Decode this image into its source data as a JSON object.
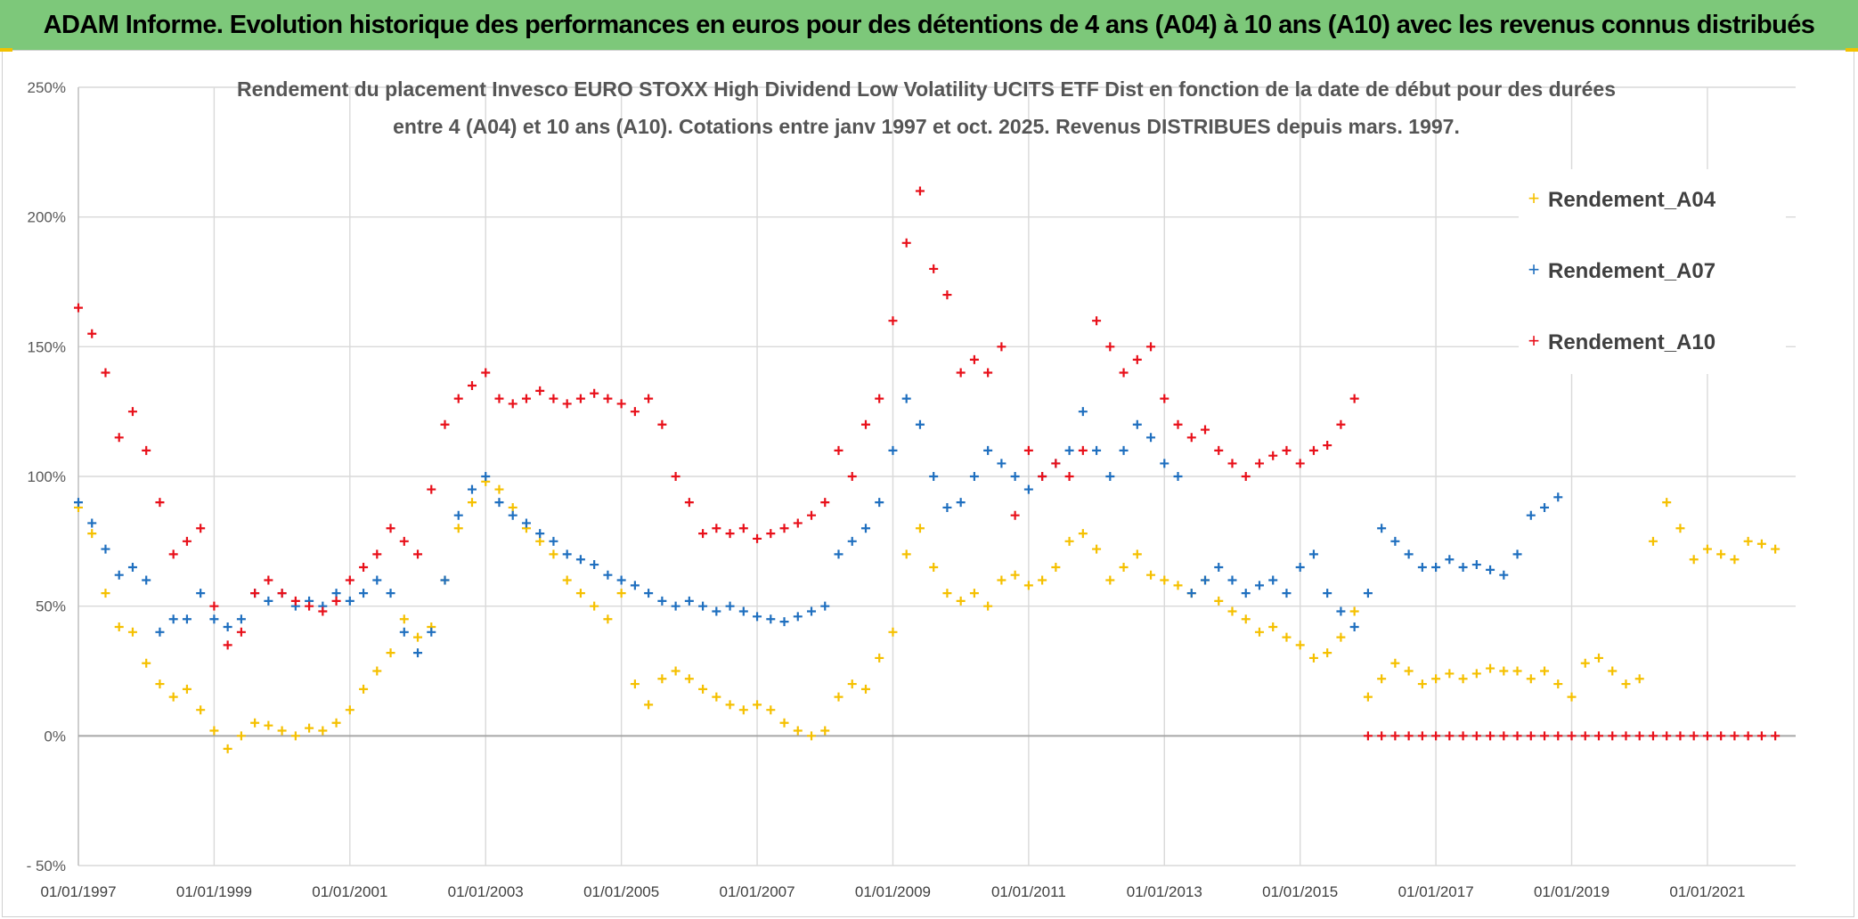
{
  "banner": {
    "title": "ADAM Informe. Evolution historique des performances en euros pour des détentions de 4 ans (A04) à 10 ans (A10) avec les revenus connus distribués"
  },
  "colors": {
    "banner_bg": "#7dc87a",
    "A04": "#f5c000",
    "A07": "#1f6fbf",
    "A10": "#e8101a",
    "grid": "#d9d9d9"
  },
  "chart_data": {
    "type": "scatter",
    "title_lines": [
      "Rendement du placement Invesco EURO STOXX High Dividend Low Volatility UCITS ETF Dist en fonction de la date de début pour des durées",
      "entre 4 (A04) et 10 ans (A10). Cotations entre janv 1997 et oct. 2025. Revenus DISTRIBUES depuis mars. 1997."
    ],
    "xlabel": "",
    "ylabel": "",
    "xlim": [
      1997.0,
      2022.3
    ],
    "ylim": [
      -50,
      250
    ],
    "y_ticks": [
      -50,
      0,
      50,
      100,
      150,
      200,
      250
    ],
    "y_tick_labels": [
      "- 50%",
      "0%",
      "50%",
      "100%",
      "150%",
      "200%",
      "250%"
    ],
    "x_ticks": [
      1997,
      1999,
      2001,
      2003,
      2005,
      2007,
      2009,
      2011,
      2013,
      2015,
      2017,
      2019,
      2021
    ],
    "x_tick_labels": [
      "01/01/1997",
      "01/01/1999",
      "01/01/2001",
      "01/01/2003",
      "01/01/2005",
      "01/01/2007",
      "01/01/2009",
      "01/01/2011",
      "01/01/2013",
      "01/01/2015",
      "01/01/2017",
      "01/01/2019",
      "01/01/2021"
    ],
    "legend_position": "top-right",
    "marker": "+",
    "series": [
      {
        "name": "Rendement_A04",
        "color": "#f5c000",
        "x": [
          1997.0,
          1997.2,
          1997.4,
          1997.6,
          1997.8,
          1998.0,
          1998.2,
          1998.4,
          1998.6,
          1998.8,
          1999.0,
          1999.2,
          1999.4,
          1999.6,
          1999.8,
          2000.0,
          2000.2,
          2000.4,
          2000.6,
          2000.8,
          2001.0,
          2001.2,
          2001.4,
          2001.6,
          2001.8,
          2002.0,
          2002.2,
          2002.4,
          2002.6,
          2002.8,
          2003.0,
          2003.2,
          2003.4,
          2003.6,
          2003.8,
          2004.0,
          2004.2,
          2004.4,
          2004.6,
          2004.8,
          2005.0,
          2005.2,
          2005.4,
          2005.6,
          2005.8,
          2006.0,
          2006.2,
          2006.4,
          2006.6,
          2006.8,
          2007.0,
          2007.2,
          2007.4,
          2007.6,
          2007.8,
          2008.0,
          2008.2,
          2008.4,
          2008.6,
          2008.8,
          2009.0,
          2009.2,
          2009.4,
          2009.6,
          2009.8,
          2010.0,
          2010.2,
          2010.4,
          2010.6,
          2010.8,
          2011.0,
          2011.2,
          2011.4,
          2011.6,
          2011.8,
          2012.0,
          2012.2,
          2012.4,
          2012.6,
          2012.8,
          2013.0,
          2013.2,
          2013.4,
          2013.6,
          2013.8,
          2014.0,
          2014.2,
          2014.4,
          2014.6,
          2014.8,
          2015.0,
          2015.2,
          2015.4,
          2015.6,
          2015.8,
          2016.0,
          2016.2,
          2016.4,
          2016.6,
          2016.8,
          2017.0,
          2017.2,
          2017.4,
          2017.6,
          2017.8,
          2018.0,
          2018.2,
          2018.4,
          2018.6,
          2018.8,
          2019.0,
          2019.2,
          2019.4,
          2019.6,
          2019.8,
          2020.0,
          2020.2,
          2020.4,
          2020.6,
          2020.8,
          2021.0,
          2021.2,
          2021.4,
          2021.6,
          2021.8,
          2022.0
        ],
        "values": [
          88,
          78,
          55,
          42,
          40,
          28,
          20,
          15,
          18,
          10,
          2,
          -5,
          0,
          5,
          4,
          2,
          0,
          3,
          2,
          5,
          10,
          18,
          25,
          32,
          45,
          38,
          42,
          60,
          80,
          90,
          98,
          95,
          88,
          80,
          75,
          70,
          60,
          55,
          50,
          45,
          55,
          20,
          12,
          22,
          25,
          22,
          18,
          15,
          12,
          10,
          12,
          10,
          5,
          2,
          0,
          2,
          15,
          20,
          18,
          30,
          40,
          70,
          80,
          65,
          55,
          52,
          55,
          50,
          60,
          62,
          58,
          60,
          65,
          75,
          78,
          72,
          60,
          65,
          70,
          62,
          60,
          58,
          55,
          60,
          52,
          48,
          45,
          40,
          42,
          38,
          35,
          30,
          32,
          38,
          48,
          15,
          22,
          28,
          25,
          20,
          22,
          24,
          22,
          24,
          26,
          25,
          25,
          22,
          25,
          20,
          15,
          28,
          30,
          25,
          20,
          22,
          75,
          90,
          80,
          68,
          72,
          70,
          68,
          75,
          74,
          72
        ]
      },
      {
        "name": "Rendement_A07",
        "color": "#1f6fbf",
        "x": [
          1997.0,
          1997.2,
          1997.4,
          1997.6,
          1997.8,
          1998.0,
          1998.2,
          1998.4,
          1998.6,
          1998.8,
          1999.0,
          1999.2,
          1999.4,
          1999.6,
          1999.8,
          2000.0,
          2000.2,
          2000.4,
          2000.6,
          2000.8,
          2001.0,
          2001.2,
          2001.4,
          2001.6,
          2001.8,
          2002.0,
          2002.2,
          2002.4,
          2002.6,
          2002.8,
          2003.0,
          2003.2,
          2003.4,
          2003.6,
          2003.8,
          2004.0,
          2004.2,
          2004.4,
          2004.6,
          2004.8,
          2005.0,
          2005.2,
          2005.4,
          2005.6,
          2005.8,
          2006.0,
          2006.2,
          2006.4,
          2006.6,
          2006.8,
          2007.0,
          2007.2,
          2007.4,
          2007.6,
          2007.8,
          2008.0,
          2008.2,
          2008.4,
          2008.6,
          2008.8,
          2009.0,
          2009.2,
          2009.4,
          2009.6,
          2009.8,
          2010.0,
          2010.2,
          2010.4,
          2010.6,
          2010.8,
          2011.0,
          2011.2,
          2011.4,
          2011.6,
          2011.8,
          2012.0,
          2012.2,
          2012.4,
          2012.6,
          2012.8,
          2013.0,
          2013.2,
          2013.4,
          2013.6,
          2013.8,
          2014.0,
          2014.2,
          2014.4,
          2014.6,
          2014.8,
          2015.0,
          2015.2,
          2015.4,
          2015.6,
          2015.8,
          2016.0,
          2016.2,
          2016.4,
          2016.6,
          2016.8,
          2017.0,
          2017.2,
          2017.4,
          2017.6,
          2017.8,
          2018.0,
          2018.2,
          2018.4,
          2018.6,
          2018.8
        ],
        "values": [
          90,
          82,
          72,
          62,
          65,
          60,
          40,
          45,
          45,
          55,
          45,
          42,
          45,
          55,
          52,
          55,
          50,
          52,
          50,
          55,
          52,
          55,
          60,
          55,
          40,
          32,
          40,
          60,
          85,
          95,
          100,
          90,
          85,
          82,
          78,
          75,
          70,
          68,
          66,
          62,
          60,
          58,
          55,
          52,
          50,
          52,
          50,
          48,
          50,
          48,
          46,
          45,
          44,
          46,
          48,
          50,
          70,
          75,
          80,
          90,
          110,
          130,
          120,
          100,
          88,
          90,
          100,
          110,
          105,
          100,
          95,
          100,
          105,
          110,
          125,
          110,
          100,
          110,
          120,
          115,
          105,
          100,
          55,
          60,
          65,
          60,
          55,
          58,
          60,
          55,
          65,
          70,
          55,
          48,
          42,
          55,
          80,
          75,
          70,
          65,
          65,
          68,
          65,
          66,
          64,
          62,
          70,
          85,
          88,
          92
        ]
      },
      {
        "name": "Rendement_A10",
        "color": "#e8101a",
        "x": [
          1997.0,
          1997.2,
          1997.4,
          1997.6,
          1997.8,
          1998.0,
          1998.2,
          1998.4,
          1998.6,
          1998.8,
          1999.0,
          1999.2,
          1999.4,
          1999.6,
          1999.8,
          2000.0,
          2000.2,
          2000.4,
          2000.6,
          2000.8,
          2001.0,
          2001.2,
          2001.4,
          2001.6,
          2001.8,
          2002.0,
          2002.2,
          2002.4,
          2002.6,
          2002.8,
          2003.0,
          2003.2,
          2003.4,
          2003.6,
          2003.8,
          2004.0,
          2004.2,
          2004.4,
          2004.6,
          2004.8,
          2005.0,
          2005.2,
          2005.4,
          2005.6,
          2005.8,
          2006.0,
          2006.2,
          2006.4,
          2006.6,
          2006.8,
          2007.0,
          2007.2,
          2007.4,
          2007.6,
          2007.8,
          2008.0,
          2008.2,
          2008.4,
          2008.6,
          2008.8,
          2009.0,
          2009.2,
          2009.4,
          2009.6,
          2009.8,
          2010.0,
          2010.2,
          2010.4,
          2010.6,
          2010.8,
          2011.0,
          2011.2,
          2011.4,
          2011.6,
          2011.8,
          2012.0,
          2012.2,
          2012.4,
          2012.6,
          2012.8,
          2013.0,
          2013.2,
          2013.4,
          2013.6,
          2013.8,
          2014.0,
          2014.2,
          2014.4,
          2014.6,
          2014.8,
          2015.0,
          2015.2,
          2015.4,
          2015.6,
          2015.8,
          2016.0,
          2016.2,
          2016.4,
          2016.6,
          2016.8,
          2017.0,
          2017.2,
          2017.4,
          2017.6,
          2017.8,
          2018.0,
          2018.2,
          2018.4,
          2018.6,
          2018.8,
          2019.0,
          2019.2,
          2019.4,
          2019.6,
          2019.8,
          2020.0,
          2020.2,
          2020.4,
          2020.6,
          2020.8,
          2021.0,
          2021.2,
          2021.4,
          2021.6,
          2021.8,
          2022.0
        ],
        "values": [
          165,
          155,
          140,
          115,
          125,
          110,
          90,
          70,
          75,
          80,
          50,
          35,
          40,
          55,
          60,
          55,
          52,
          50,
          48,
          52,
          60,
          65,
          70,
          80,
          75,
          70,
          95,
          120,
          130,
          135,
          140,
          130,
          128,
          130,
          133,
          130,
          128,
          130,
          132,
          130,
          128,
          125,
          130,
          120,
          100,
          90,
          78,
          80,
          78,
          80,
          76,
          78,
          80,
          82,
          85,
          90,
          110,
          100,
          120,
          130,
          160,
          190,
          210,
          180,
          170,
          140,
          145,
          140,
          150,
          85,
          110,
          100,
          105,
          100,
          110,
          160,
          150,
          140,
          145,
          150,
          130,
          120,
          115,
          118,
          110,
          105,
          100,
          105,
          108,
          110,
          105,
          110,
          112,
          120,
          130,
          0,
          0,
          0,
          0,
          0,
          0,
          0,
          0,
          0,
          0,
          0,
          0,
          0,
          0,
          0,
          0,
          0,
          0,
          0,
          0,
          0,
          0,
          0,
          0,
          0,
          0,
          0,
          0,
          0,
          0,
          0
        ]
      }
    ]
  }
}
